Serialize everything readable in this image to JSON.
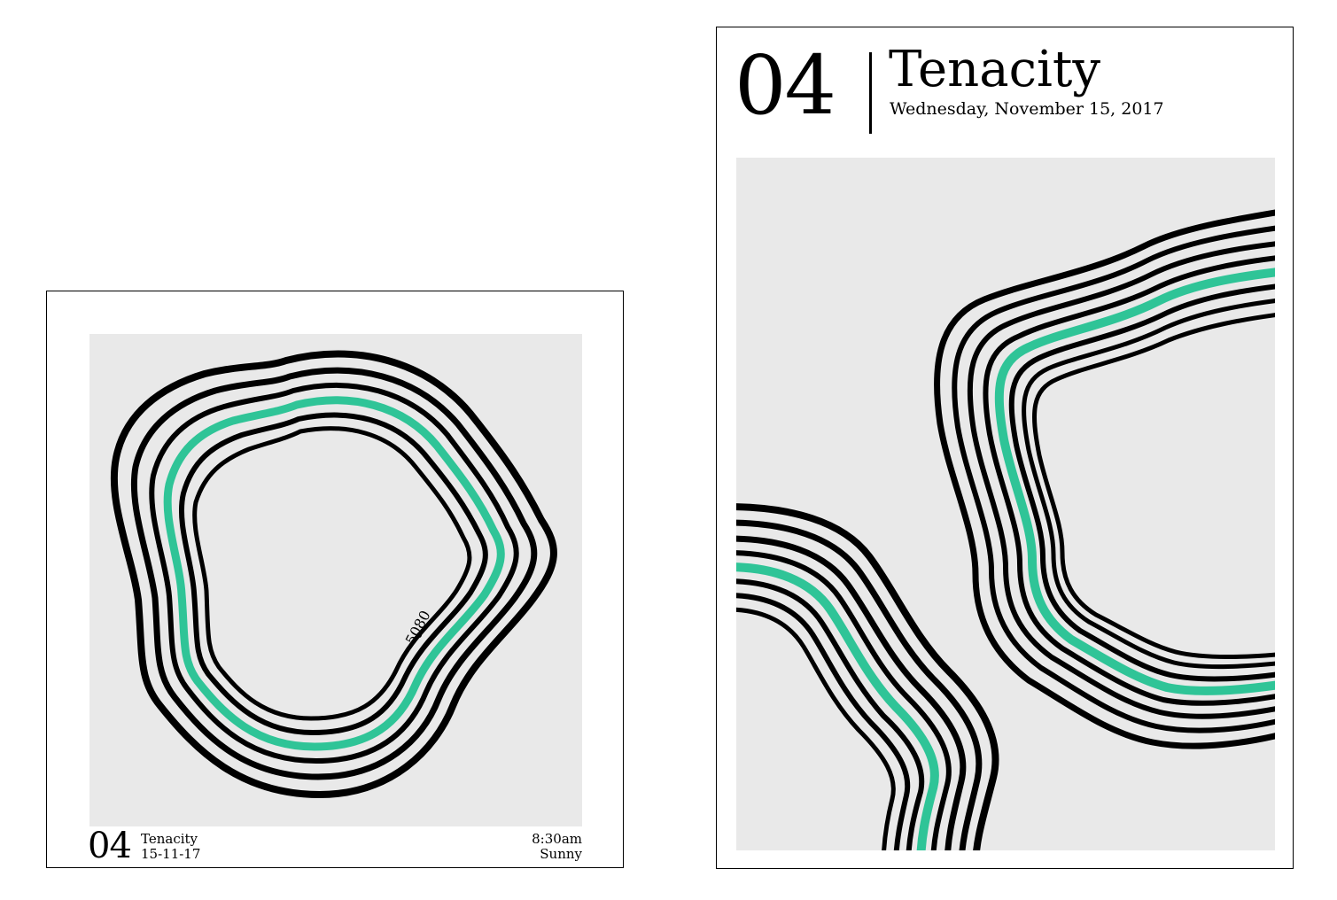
{
  "left_poster": {
    "number": "04",
    "title": "Tenacity",
    "date": "15-11-17",
    "time": "8:30am",
    "weather": "Sunny",
    "elevation_label": "5080"
  },
  "right_poster": {
    "number": "04",
    "title": "Tenacity",
    "date": "Wednesday, November 15, 2017"
  },
  "colors": {
    "accent": "#2fc497",
    "panel": "#e9e9e9",
    "line": "#000000"
  }
}
